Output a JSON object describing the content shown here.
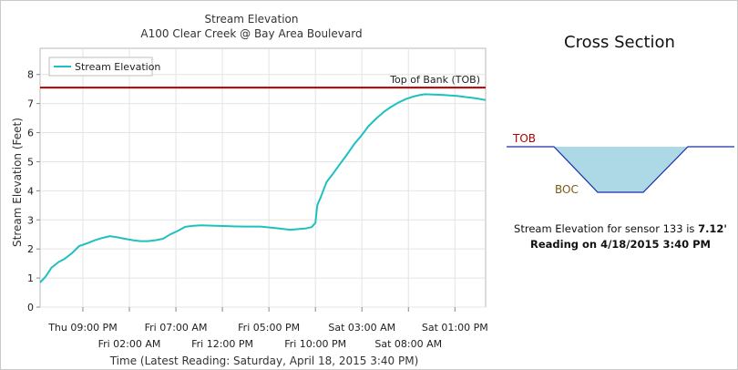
{
  "chart_data": {
    "type": "line",
    "title": "Stream Elevation",
    "subtitle": "A100 Clear Creek @ Bay Area Boulevard",
    "xlabel": "Time (Latest Reading: Saturday, April 18, 2015 3:40 PM)",
    "ylabel": "Stream Elevation (Feet)",
    "ylim": [
      0,
      8.9
    ],
    "yticks": [
      0,
      1,
      2,
      3,
      4,
      5,
      6,
      7,
      8
    ],
    "grid": true,
    "legend": {
      "position": "top-left",
      "entries": [
        "Stream Elevation"
      ]
    },
    "x_tick_labels": [
      {
        "label": "Thu 09:00 PM",
        "hour": 5,
        "row": 1
      },
      {
        "label": "Fri 02:00 AM",
        "hour": 10,
        "row": 2
      },
      {
        "label": "Fri 07:00 AM",
        "hour": 15,
        "row": 1
      },
      {
        "label": "Fri 12:00 PM",
        "hour": 20,
        "row": 2
      },
      {
        "label": "Fri 05:00 PM",
        "hour": 25,
        "row": 1
      },
      {
        "label": "Fri 10:00 PM",
        "hour": 30,
        "row": 2
      },
      {
        "label": "Sat 03:00 AM",
        "hour": 35,
        "row": 1
      },
      {
        "label": "Sat 08:00 AM",
        "hour": 40,
        "row": 2
      },
      {
        "label": "Sat 01:00 PM",
        "hour": 45,
        "row": 1
      }
    ],
    "xlim_hours": [
      0.4,
      48.3
    ],
    "series": [
      {
        "name": "Stream Elevation",
        "color": "#20c0c0",
        "points": [
          [
            0.4,
            0.85
          ],
          [
            1.0,
            1.05
          ],
          [
            1.6,
            1.35
          ],
          [
            2.4,
            1.55
          ],
          [
            3.0,
            1.65
          ],
          [
            3.8,
            1.85
          ],
          [
            4.6,
            2.1
          ],
          [
            5.5,
            2.2
          ],
          [
            6.3,
            2.3
          ],
          [
            7.1,
            2.38
          ],
          [
            7.9,
            2.44
          ],
          [
            8.7,
            2.4
          ],
          [
            9.5,
            2.35
          ],
          [
            10.4,
            2.3
          ],
          [
            11.2,
            2.27
          ],
          [
            12.0,
            2.27
          ],
          [
            12.8,
            2.3
          ],
          [
            13.6,
            2.35
          ],
          [
            14.4,
            2.5
          ],
          [
            15.2,
            2.62
          ],
          [
            16.0,
            2.76
          ],
          [
            16.9,
            2.8
          ],
          [
            17.7,
            2.81
          ],
          [
            19.3,
            2.8
          ],
          [
            20.9,
            2.78
          ],
          [
            22.5,
            2.77
          ],
          [
            24.1,
            2.77
          ],
          [
            25.7,
            2.72
          ],
          [
            27.3,
            2.66
          ],
          [
            28.9,
            2.7
          ],
          [
            29.6,
            2.75
          ],
          [
            30.0,
            2.9
          ],
          [
            30.2,
            3.5
          ],
          [
            30.6,
            3.8
          ],
          [
            31.2,
            4.3
          ],
          [
            31.8,
            4.55
          ],
          [
            32.6,
            4.9
          ],
          [
            33.4,
            5.25
          ],
          [
            34.2,
            5.62
          ],
          [
            34.9,
            5.88
          ],
          [
            35.7,
            6.22
          ],
          [
            36.5,
            6.47
          ],
          [
            37.3,
            6.7
          ],
          [
            38.1,
            6.88
          ],
          [
            38.9,
            7.03
          ],
          [
            39.7,
            7.15
          ],
          [
            40.5,
            7.24
          ],
          [
            41.3,
            7.3
          ],
          [
            41.8,
            7.32
          ],
          [
            43.6,
            7.3
          ],
          [
            45.2,
            7.26
          ],
          [
            46.8,
            7.2
          ],
          [
            47.6,
            7.16
          ],
          [
            48.3,
            7.12
          ]
        ]
      }
    ],
    "annotations": [
      {
        "label": "Top of Bank (TOB)",
        "y": 7.55,
        "color": "#b00000"
      }
    ]
  },
  "cross_section": {
    "title": "Cross Section",
    "tob_label": "TOB",
    "boc_label": "BOC",
    "tob_color": "#b00000",
    "boc_color": "#7a5a10",
    "water_color": "#add8e6",
    "bank_line_color": "#1a2ea8"
  },
  "reading": {
    "line1_prefix": "Stream Elevation for sensor 133 is ",
    "line1_value": "7.12'",
    "line2": "Reading on 4/18/2015 3:40 PM"
  }
}
